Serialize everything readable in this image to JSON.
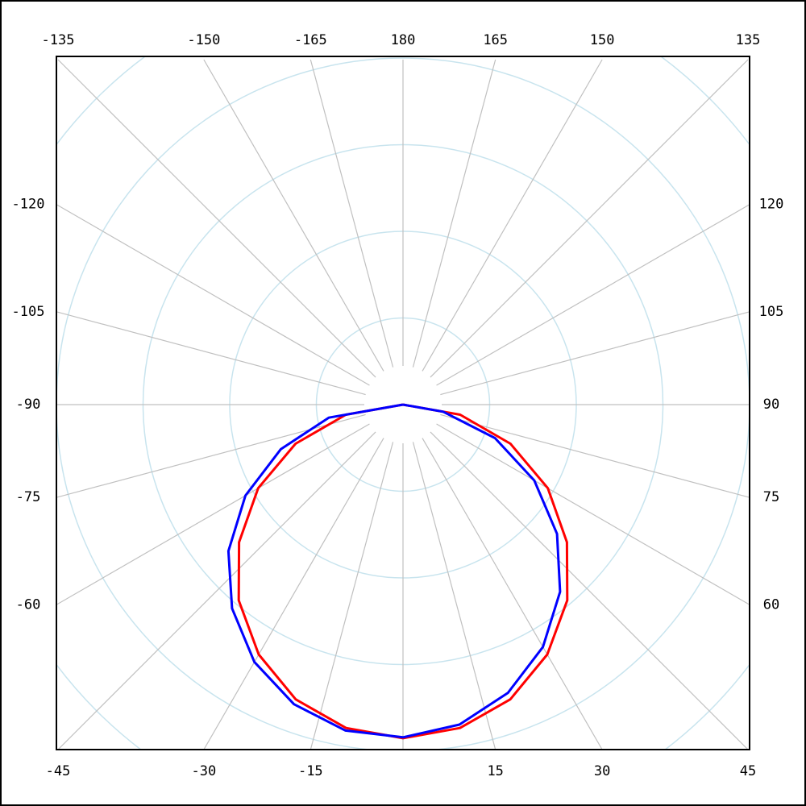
{
  "chart_data": {
    "type": "polar",
    "theta": [
      -90,
      -80,
      -70,
      -60,
      -50,
      -40,
      -30,
      -20,
      -10,
      0,
      10,
      20,
      30,
      40,
      50,
      60,
      70,
      80,
      90
    ],
    "series": [
      {
        "color": "#ff0000",
        "values": [
          0,
          0.67,
          1.32,
          1.93,
          2.47,
          2.95,
          3.33,
          3.62,
          3.79,
          3.85,
          3.79,
          3.62,
          3.33,
          2.95,
          2.47,
          1.93,
          1.32,
          0.67,
          0
        ]
      },
      {
        "color": "#0000ff",
        "values": [
          0,
          0.87,
          1.5,
          2.1,
          2.63,
          3.07,
          3.43,
          3.68,
          3.82,
          3.84,
          3.75,
          3.54,
          3.23,
          2.82,
          2.32,
          1.75,
          1.13,
          0.47,
          0
        ]
      }
    ],
    "rlim": [
      0,
      4
    ],
    "rticks": [
      1,
      2,
      3,
      4,
      5
    ],
    "thetaticks": [
      -135,
      -150,
      -165,
      180,
      165,
      150,
      135,
      120,
      105,
      90,
      75,
      60,
      45,
      30,
      15,
      {
        "value": 0,
        "label": null
      },
      -15,
      -30,
      -45,
      -60,
      -75,
      -90,
      -105,
      -120
    ],
    "ring_color": "#c8e4ee",
    "spoke_color": "#c0c0c0",
    "grid": true
  }
}
